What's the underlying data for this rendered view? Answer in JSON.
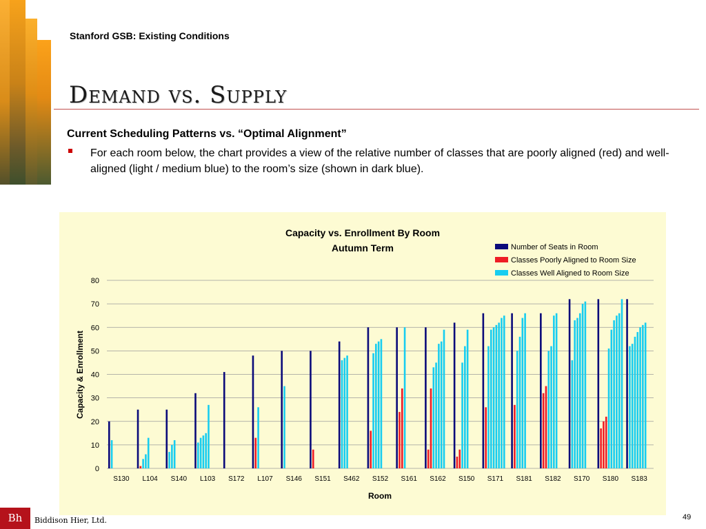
{
  "header": {
    "kicker": "Stanford GSB: Existing Conditions",
    "title": "Demand vs. Supply"
  },
  "content": {
    "subheading": "Current Scheduling Patterns vs. “Optimal Alignment”",
    "bullet": "For each room below, the chart provides a view of the relative number of classes that are poorly aligned (red) and well-aligned (light / medium blue) to the room’s size (shown in dark blue)."
  },
  "footer": {
    "logo": "Bh",
    "company": "Biddison Hier, Ltd.",
    "page_number": "49"
  },
  "colors": {
    "seats": "#0a0a7a",
    "poorly": "#ee1c25",
    "well": "#17cdf0",
    "panel": "#fdfbd3",
    "grid": "#9b9b9b",
    "rule": "#c0504d"
  },
  "chart_data": {
    "type": "bar",
    "title": "Capacity vs. Enrollment By Room",
    "subtitle": "Autumn Term",
    "xlabel": "Room",
    "ylabel": "Capacity & Enrollment",
    "ylim": [
      0,
      80
    ],
    "yticks": [
      0,
      10,
      20,
      30,
      40,
      50,
      60,
      70,
      80
    ],
    "grid": true,
    "legend_position": "top-right",
    "legend": [
      "Number of Seats in Room",
      "Classes Poorly Aligned to Room Size",
      "Classes Well Aligned to Room Size"
    ],
    "rooms": [
      {
        "room": "S130",
        "seats": 20,
        "poorly": [],
        "well": [
          12
        ]
      },
      {
        "room": "L104",
        "seats": 25,
        "poorly": [
          1
        ],
        "well": [
          4,
          6,
          13
        ]
      },
      {
        "room": "S140",
        "seats": 25,
        "poorly": [],
        "well": [
          7,
          10,
          12
        ]
      },
      {
        "room": "L103",
        "seats": 32,
        "poorly": [],
        "well": [
          11,
          13,
          14,
          15,
          27
        ]
      },
      {
        "room": "S172",
        "seats": 41,
        "poorly": [],
        "well": []
      },
      {
        "room": "L107",
        "seats": 48,
        "poorly": [
          13
        ],
        "well": [
          26
        ]
      },
      {
        "room": "S146",
        "seats": 50,
        "poorly": [],
        "well": [
          35
        ]
      },
      {
        "room": "S151",
        "seats": 50,
        "poorly": [
          8
        ],
        "well": []
      },
      {
        "room": "S462",
        "seats": 54,
        "poorly": [],
        "well": [
          46,
          47,
          48
        ]
      },
      {
        "room": "S152",
        "seats": 60,
        "poorly": [
          16
        ],
        "well": [
          49,
          53,
          54,
          55
        ]
      },
      {
        "room": "S161",
        "seats": 60,
        "poorly": [
          24,
          34
        ],
        "well": [
          60
        ]
      },
      {
        "room": "S162",
        "seats": 60,
        "poorly": [
          8,
          34
        ],
        "well": [
          43,
          45,
          53,
          54,
          59
        ]
      },
      {
        "room": "S150",
        "seats": 62,
        "poorly": [
          5,
          8
        ],
        "well": [
          45,
          52,
          59
        ]
      },
      {
        "room": "S171",
        "seats": 66,
        "poorly": [
          26
        ],
        "well": [
          52,
          59,
          60,
          61,
          62,
          64,
          65
        ]
      },
      {
        "room": "S181",
        "seats": 66,
        "poorly": [
          27
        ],
        "well": [
          50,
          56,
          64,
          66
        ]
      },
      {
        "room": "S182",
        "seats": 66,
        "poorly": [
          32,
          35
        ],
        "well": [
          50,
          52,
          65,
          66
        ]
      },
      {
        "room": "S170",
        "seats": 72,
        "poorly": [],
        "well": [
          46,
          63,
          64,
          66,
          70,
          71
        ]
      },
      {
        "room": "S180",
        "seats": 72,
        "poorly": [
          17,
          20,
          22
        ],
        "well": [
          51,
          59,
          63,
          65,
          66,
          72
        ]
      },
      {
        "room": "S183",
        "seats": 72,
        "poorly": [],
        "well": [
          52,
          53,
          56,
          58,
          60,
          61,
          62
        ]
      }
    ]
  }
}
